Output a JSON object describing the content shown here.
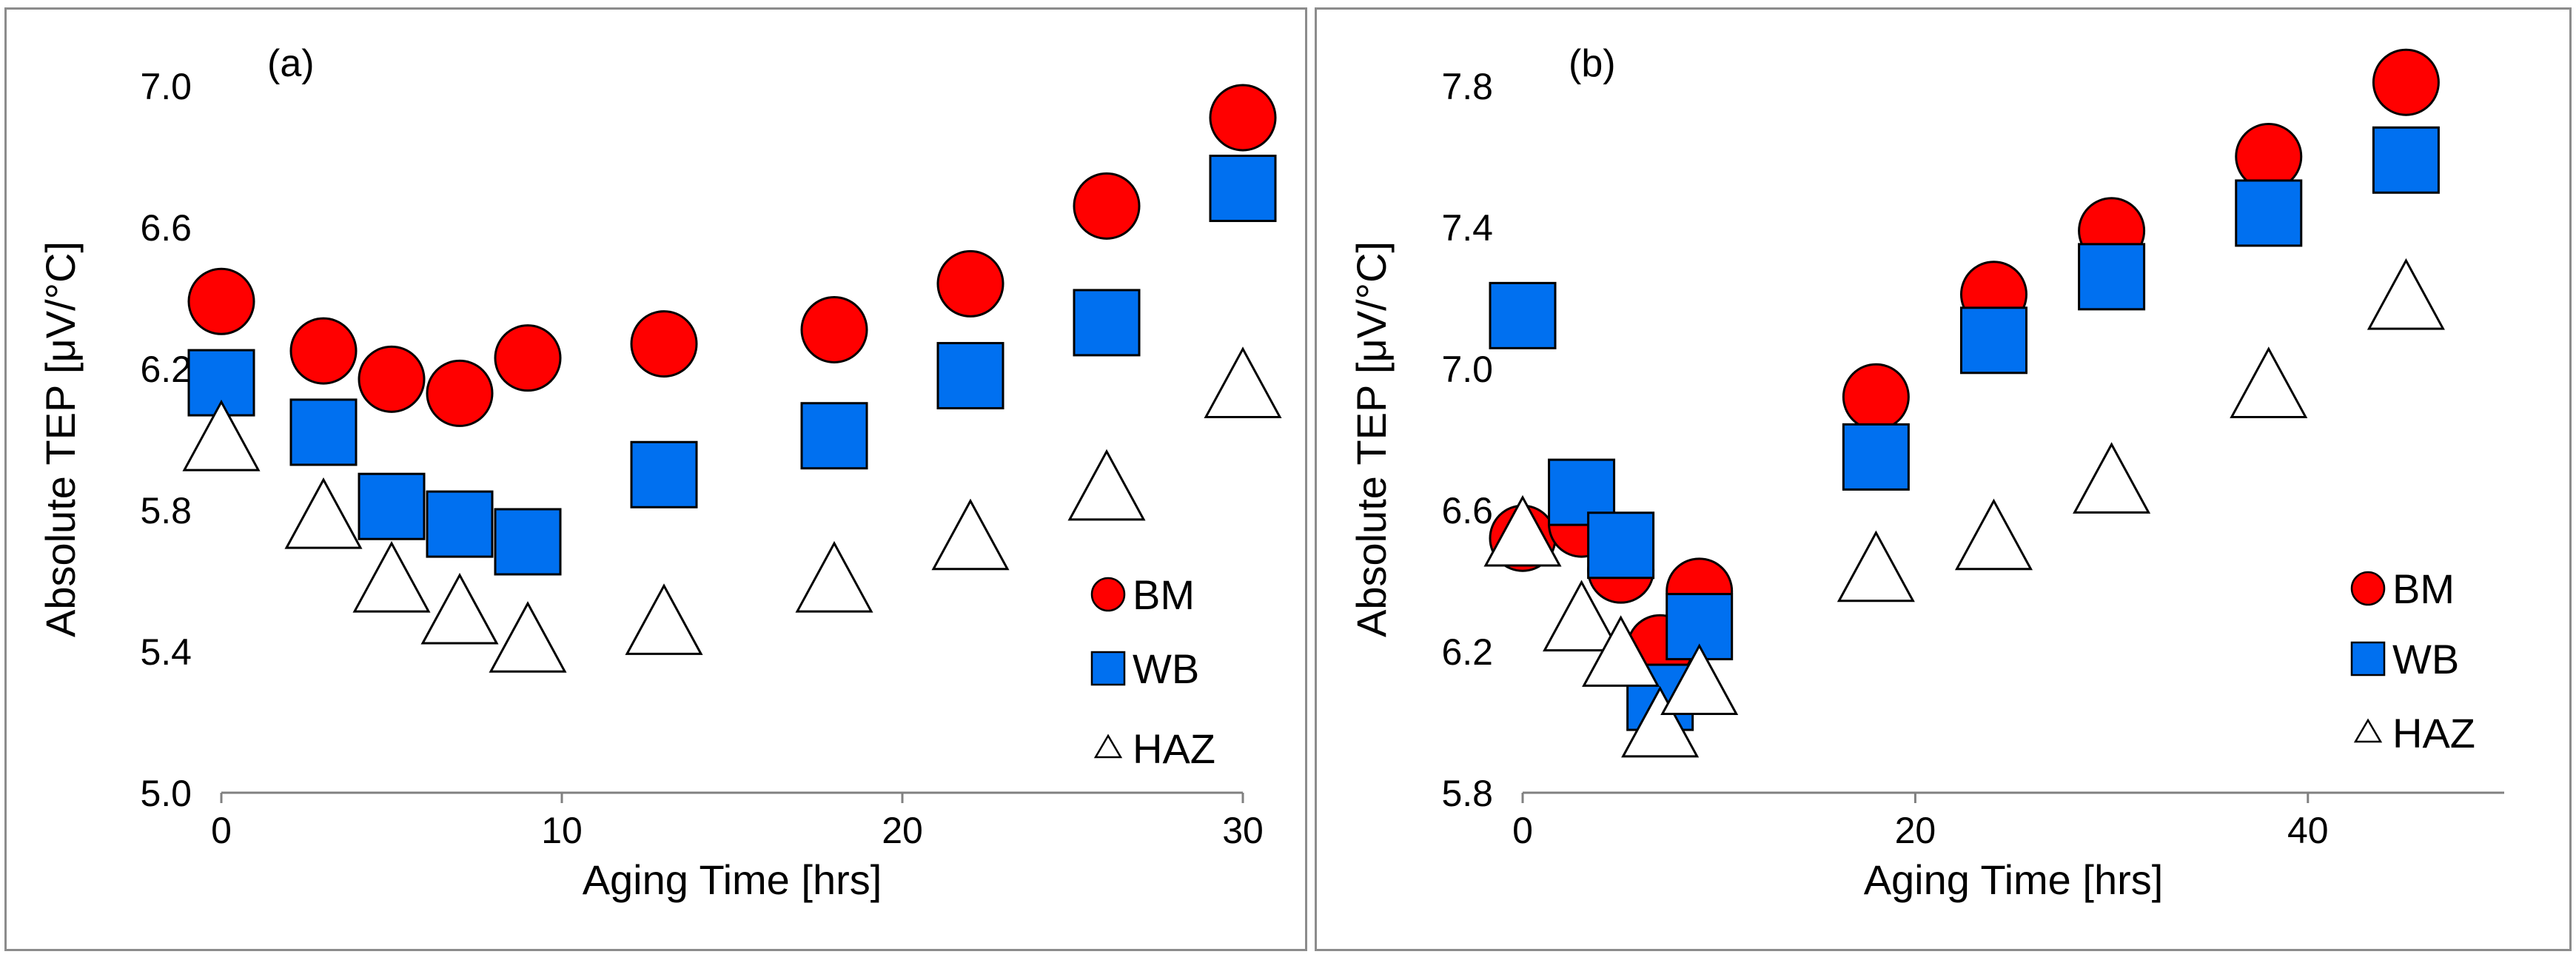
{
  "chart_data": [
    {
      "type": "scatter",
      "panel_label": "(a)",
      "xlabel": "Aging Time [hrs]",
      "ylabel": "Absolute TEP [μV/°C]",
      "xlim": [
        0,
        30
      ],
      "ylim": [
        5.0,
        7.0
      ],
      "xticks": [
        "0",
        "10",
        "20",
        "30"
      ],
      "yticks": [
        "5.0",
        "5.4",
        "5.8",
        "6.2",
        "6.6",
        "7.0"
      ],
      "legend_position": "right",
      "series": [
        {
          "name": "BM",
          "marker": "circle",
          "color": "#ff0000",
          "x": [
            0,
            3,
            5,
            7,
            9,
            13,
            18,
            22,
            26,
            30
          ],
          "y": [
            6.39,
            6.25,
            6.17,
            6.13,
            6.23,
            6.27,
            6.31,
            6.44,
            6.66,
            6.91
          ]
        },
        {
          "name": "WB",
          "marker": "square",
          "color": "#0070f0",
          "x": [
            0,
            3,
            5,
            7,
            9,
            13,
            18,
            22,
            26,
            30
          ],
          "y": [
            6.16,
            6.02,
            5.81,
            5.76,
            5.71,
            5.9,
            6.01,
            6.18,
            6.33,
            6.71
          ]
        },
        {
          "name": "HAZ",
          "marker": "triangle",
          "color": "#ffffff",
          "x": [
            0,
            3,
            5,
            7,
            9,
            13,
            18,
            22,
            26,
            30
          ],
          "y": [
            5.99,
            5.77,
            5.59,
            5.5,
            5.42,
            5.47,
            5.59,
            5.71,
            5.85,
            6.14
          ]
        }
      ]
    },
    {
      "type": "scatter",
      "panel_label": "(b)",
      "xlabel": "Aging Time [hrs]",
      "ylabel": "Absolute TEP [μV/°C]",
      "xlim": [
        0,
        50
      ],
      "ylim": [
        5.8,
        7.8
      ],
      "xticks": [
        "0",
        "20",
        "40"
      ],
      "yticks": [
        "5.8",
        "6.2",
        "6.6",
        "7.0",
        "7.4",
        "7.8"
      ],
      "legend_position": "right",
      "series": [
        {
          "name": "BM",
          "marker": "circle",
          "color": "#ff0000",
          "x": [
            0,
            3,
            5,
            7,
            9,
            18,
            24,
            30,
            38,
            45
          ],
          "y": [
            6.52,
            6.56,
            6.43,
            6.21,
            6.37,
            6.92,
            7.21,
            7.39,
            7.6,
            7.81
          ]
        },
        {
          "name": "WB",
          "marker": "square",
          "color": "#0070f0",
          "x": [
            0,
            3,
            5,
            7,
            9,
            18,
            24,
            30,
            38,
            45
          ],
          "y": [
            7.15,
            6.65,
            6.5,
            6.07,
            6.27,
            6.75,
            7.08,
            7.26,
            7.44,
            7.59
          ]
        },
        {
          "name": "HAZ",
          "marker": "triangle",
          "color": "#ffffff",
          "x": [
            0,
            3,
            5,
            7,
            9,
            18,
            24,
            30,
            38,
            45
          ],
          "y": [
            6.52,
            6.28,
            6.18,
            5.98,
            6.1,
            6.42,
            6.51,
            6.67,
            6.94,
            7.19
          ]
        }
      ]
    }
  ]
}
